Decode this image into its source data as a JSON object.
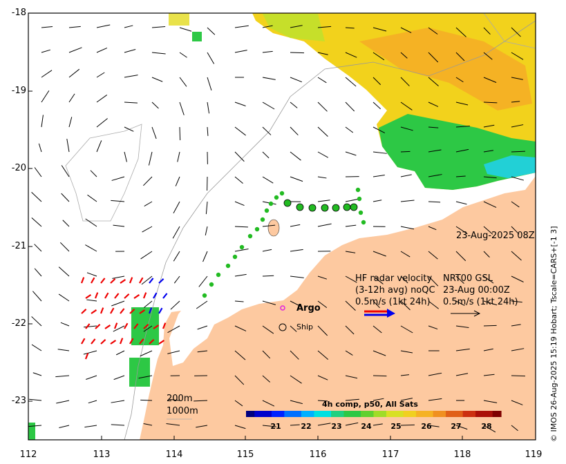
{
  "map": {
    "lon_ticks": [
      "112",
      "113",
      "114",
      "115",
      "116",
      "117",
      "118",
      "119"
    ],
    "lat_ticks": [
      "-18",
      "-19",
      "-20",
      "-21",
      "-22",
      "-23"
    ],
    "timestamp": "23-Aug-2025 08Z",
    "legend": {
      "hf_title": "HF radar velocity",
      "hf_qc": "(3-12h avg) noQC",
      "hf_scale": "0.5m/s (1kt 24h)",
      "nrt_title": "NRT00 GSL",
      "nrt_time": "23-Aug 00:00Z",
      "nrt_scale": "0.5m/s (1kt 24h)",
      "argo": "Argo",
      "ship": "Ship"
    },
    "contours": {
      "c200": "200m",
      "c1000": "1000m"
    },
    "colorbar": {
      "title": "4h comp, p50, All Sats",
      "ticks": [
        "21",
        "22",
        "23",
        "24",
        "25",
        "26",
        "27",
        "28"
      ],
      "range": [
        20.3,
        28.6
      ]
    },
    "credit": "© IMOS 26-Aug-2025 15:19 Hobart; Tscale=CARS+[-1 3]",
    "colors": {
      "land": "#fdc9a0",
      "hf_red": "#ee0000",
      "hf_blue": "#0000ee",
      "track": "#22bb22"
    }
  }
}
